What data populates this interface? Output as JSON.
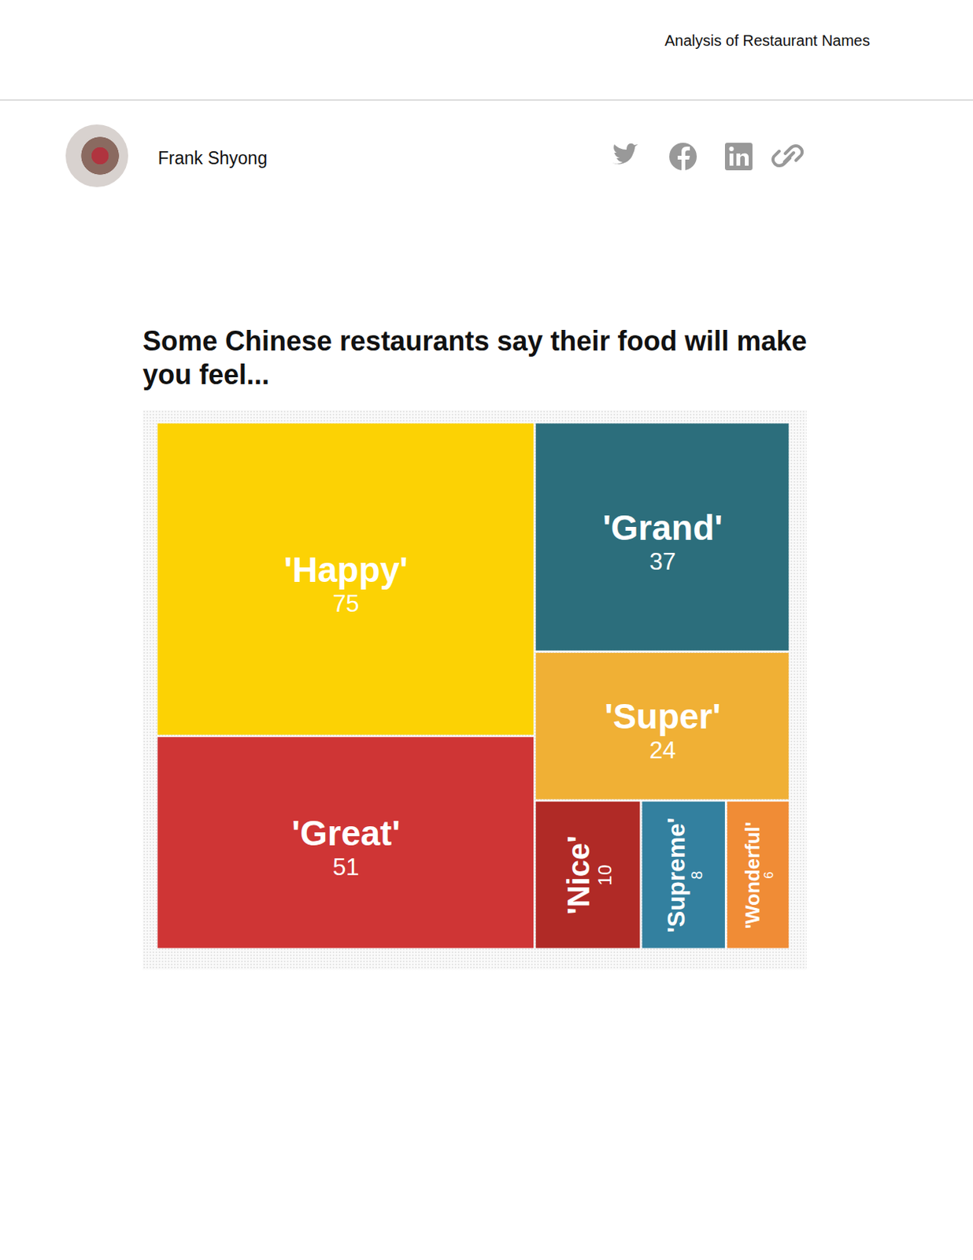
{
  "header": {
    "section": "Analysis of Restaurant Names",
    "author": "Frank Shyong"
  },
  "chart_data": {
    "type": "treemap",
    "title": "Some Chinese restaurants say their food will make you feel...",
    "categories": [
      "'Happy'",
      "'Great'",
      "'Grand'",
      "'Super'",
      "'Nice'",
      "'Supreme'",
      "'Wonderful'"
    ],
    "values": [
      75,
      51,
      37,
      24,
      10,
      8,
      6
    ],
    "colors": [
      "#fcd204",
      "#cf3535",
      "#2c6e7c",
      "#f0b035",
      "#b02a26",
      "#33809f",
      "#f08c36"
    ],
    "data_labels": true
  }
}
